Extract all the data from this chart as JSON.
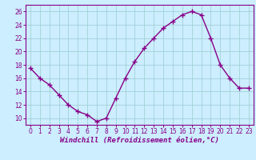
{
  "x": [
    0,
    1,
    2,
    3,
    4,
    5,
    6,
    7,
    8,
    9,
    10,
    11,
    12,
    13,
    14,
    15,
    16,
    17,
    18,
    19,
    20,
    21,
    22,
    23
  ],
  "y": [
    17.5,
    16.0,
    15.0,
    13.5,
    12.0,
    11.0,
    10.5,
    9.5,
    10.0,
    13.0,
    16.0,
    18.5,
    20.5,
    22.0,
    23.5,
    24.5,
    25.5,
    26.0,
    25.5,
    22.0,
    18.0,
    16.0,
    14.5,
    14.5
  ],
  "line_color": "#880088",
  "marker": "+",
  "marker_size": 4,
  "marker_lw": 1.0,
  "line_width": 1.0,
  "bg_color": "#cceeff",
  "grid_color": "#99cccc",
  "xlabel": "Windchill (Refroidissement éolien,°C)",
  "xlabel_color": "#880088",
  "ylim": [
    9,
    27
  ],
  "xlim": [
    -0.5,
    23.5
  ],
  "yticks": [
    10,
    12,
    14,
    16,
    18,
    20,
    22,
    24,
    26
  ],
  "xticks": [
    0,
    1,
    2,
    3,
    4,
    5,
    6,
    7,
    8,
    9,
    10,
    11,
    12,
    13,
    14,
    15,
    16,
    17,
    18,
    19,
    20,
    21,
    22,
    23
  ],
  "tick_color": "#880088",
  "tick_fontsize": 5.5,
  "xlabel_fontsize": 6.5,
  "spine_color": "#880088"
}
